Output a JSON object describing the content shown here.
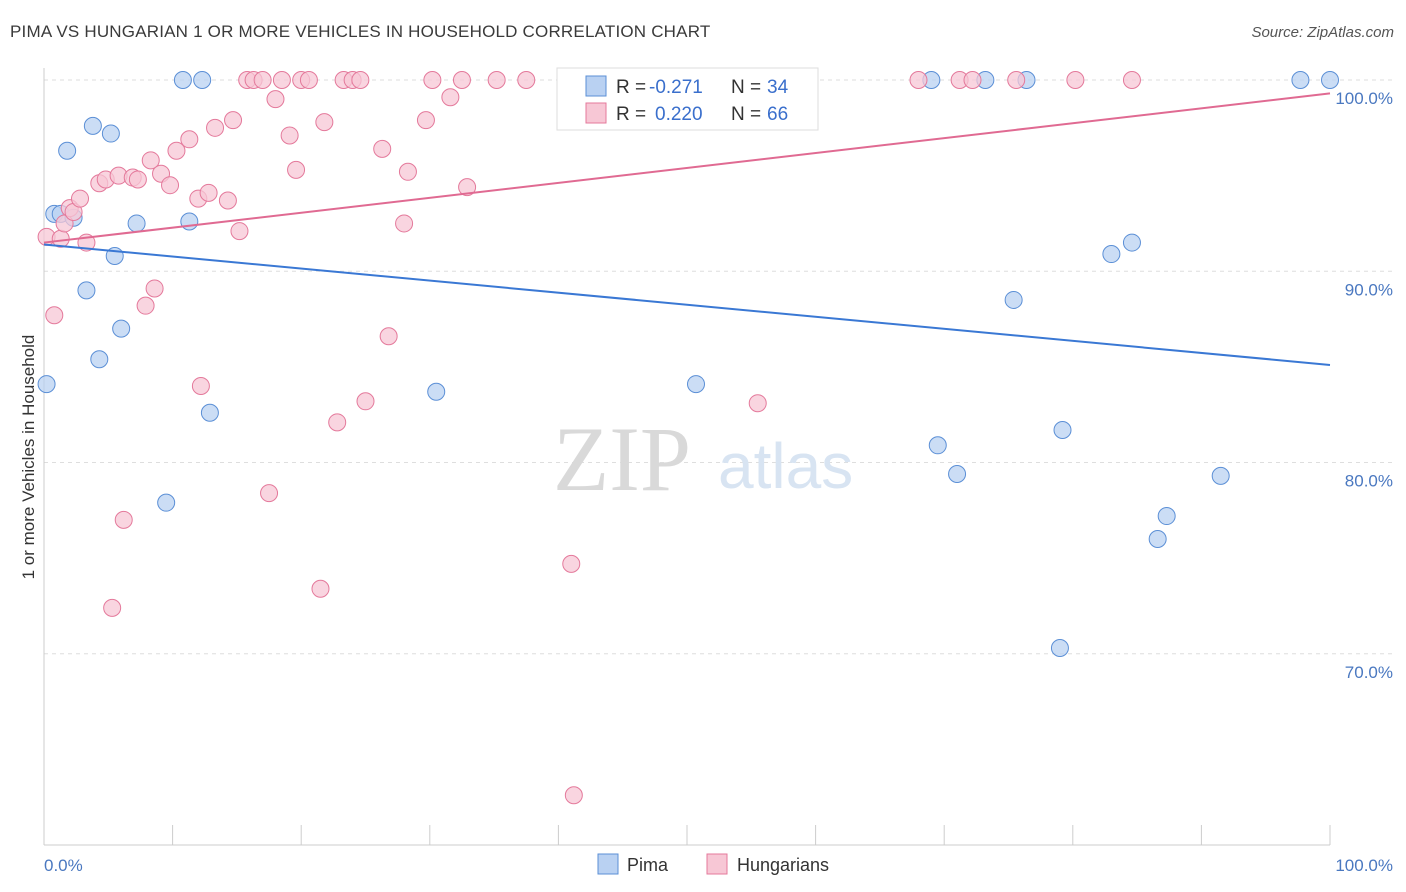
{
  "chart_data": {
    "type": "scatter",
    "title": "PIMA VS HUNGARIAN 1 OR MORE VEHICLES IN HOUSEHOLD CORRELATION CHART",
    "source": "Source: ZipAtlas.com",
    "xlabel": "",
    "ylabel": "1 or more Vehicles in Household",
    "xlim": [
      0,
      100
    ],
    "ylim": [
      60,
      100
    ],
    "x_tick_labels": [
      "0.0%",
      "100.0%"
    ],
    "y_ticks": [
      70,
      80,
      90,
      100
    ],
    "y_tick_labels": [
      "70.0%",
      "80.0%",
      "90.0%",
      "100.0%"
    ],
    "grid": true,
    "legend_position": "top-center",
    "watermark": {
      "zip": "ZIP",
      "atlas": "atlas"
    },
    "series": [
      {
        "name": "Pima",
        "color": "#5b8fd6",
        "fill": "#b9d1f2",
        "stats": {
          "r_label": "R =",
          "r": "-0.271",
          "n_label": "N =",
          "n": "34"
        },
        "trend": {
          "x": [
            0,
            100
          ],
          "y": [
            91.4,
            85.1
          ]
        },
        "points": [
          [
            0.2,
            84.1
          ],
          [
            0.8,
            93.0
          ],
          [
            1.3,
            93.0
          ],
          [
            1.8,
            96.3
          ],
          [
            2.3,
            92.8
          ],
          [
            3.3,
            89.0
          ],
          [
            3.8,
            97.6
          ],
          [
            4.3,
            85.4
          ],
          [
            5.2,
            97.2
          ],
          [
            5.5,
            90.8
          ],
          [
            6.0,
            87.0
          ],
          [
            7.2,
            92.5
          ],
          [
            9.5,
            77.9
          ],
          [
            10.8,
            100.0
          ],
          [
            11.3,
            92.6
          ],
          [
            12.3,
            100.0
          ],
          [
            12.9,
            82.6
          ],
          [
            30.5,
            83.7
          ],
          [
            50.7,
            84.1
          ],
          [
            69.0,
            100.0
          ],
          [
            69.5,
            80.9
          ],
          [
            71.0,
            79.4
          ],
          [
            73.2,
            100.0
          ],
          [
            75.4,
            88.5
          ],
          [
            76.4,
            100.0
          ],
          [
            79.0,
            70.3
          ],
          [
            79.2,
            81.7
          ],
          [
            83.0,
            90.9
          ],
          [
            84.6,
            91.5
          ],
          [
            86.6,
            76.0
          ],
          [
            87.3,
            77.2
          ],
          [
            91.5,
            79.3
          ],
          [
            97.7,
            100.0
          ],
          [
            100.0,
            100.0
          ]
        ]
      },
      {
        "name": "Hungarians",
        "color": "#e4799b",
        "fill": "#f7c7d5",
        "stats": {
          "r_label": "R =",
          "r": "0.220",
          "n_label": "N =",
          "n": "66"
        },
        "trend": {
          "x": [
            0,
            100
          ],
          "y": [
            91.5,
            99.3
          ]
        },
        "points": [
          [
            0.2,
            91.8
          ],
          [
            0.8,
            87.7
          ],
          [
            1.3,
            91.7
          ],
          [
            1.6,
            92.5
          ],
          [
            2.0,
            93.3
          ],
          [
            2.3,
            93.1
          ],
          [
            2.8,
            93.8
          ],
          [
            3.3,
            91.5
          ],
          [
            4.3,
            94.6
          ],
          [
            4.8,
            94.8
          ],
          [
            5.3,
            72.4
          ],
          [
            5.8,
            95.0
          ],
          [
            6.2,
            77.0
          ],
          [
            6.9,
            94.9
          ],
          [
            7.3,
            94.8
          ],
          [
            7.9,
            88.2
          ],
          [
            8.3,
            95.8
          ],
          [
            8.6,
            89.1
          ],
          [
            9.1,
            95.1
          ],
          [
            9.8,
            94.5
          ],
          [
            10.3,
            96.3
          ],
          [
            11.3,
            96.9
          ],
          [
            12.0,
            93.8
          ],
          [
            12.2,
            84.0
          ],
          [
            12.8,
            94.1
          ],
          [
            13.3,
            97.5
          ],
          [
            14.3,
            93.7
          ],
          [
            14.7,
            97.9
          ],
          [
            15.2,
            92.1
          ],
          [
            15.8,
            100.0
          ],
          [
            16.3,
            100.0
          ],
          [
            17.0,
            100.0
          ],
          [
            17.5,
            78.4
          ],
          [
            18.0,
            99.0
          ],
          [
            18.5,
            100.0
          ],
          [
            19.1,
            97.1
          ],
          [
            19.6,
            95.3
          ],
          [
            20.0,
            100.0
          ],
          [
            20.6,
            100.0
          ],
          [
            21.5,
            73.4
          ],
          [
            21.8,
            97.8
          ],
          [
            22.8,
            82.1
          ],
          [
            23.3,
            100.0
          ],
          [
            24.0,
            100.0
          ],
          [
            24.6,
            100.0
          ],
          [
            25.0,
            83.2
          ],
          [
            26.3,
            96.4
          ],
          [
            26.8,
            86.6
          ],
          [
            28.0,
            92.5
          ],
          [
            28.3,
            95.2
          ],
          [
            29.7,
            97.9
          ],
          [
            30.2,
            100.0
          ],
          [
            31.6,
            99.1
          ],
          [
            32.5,
            100.0
          ],
          [
            32.9,
            94.4
          ],
          [
            35.2,
            100.0
          ],
          [
            37.5,
            100.0
          ],
          [
            41.0,
            74.7
          ],
          [
            41.2,
            62.6
          ],
          [
            55.5,
            83.1
          ],
          [
            68.0,
            100.0
          ],
          [
            71.2,
            100.0
          ],
          [
            72.2,
            100.0
          ],
          [
            75.6,
            100.0
          ],
          [
            80.2,
            100.0
          ],
          [
            84.6,
            100.0
          ]
        ]
      }
    ]
  }
}
